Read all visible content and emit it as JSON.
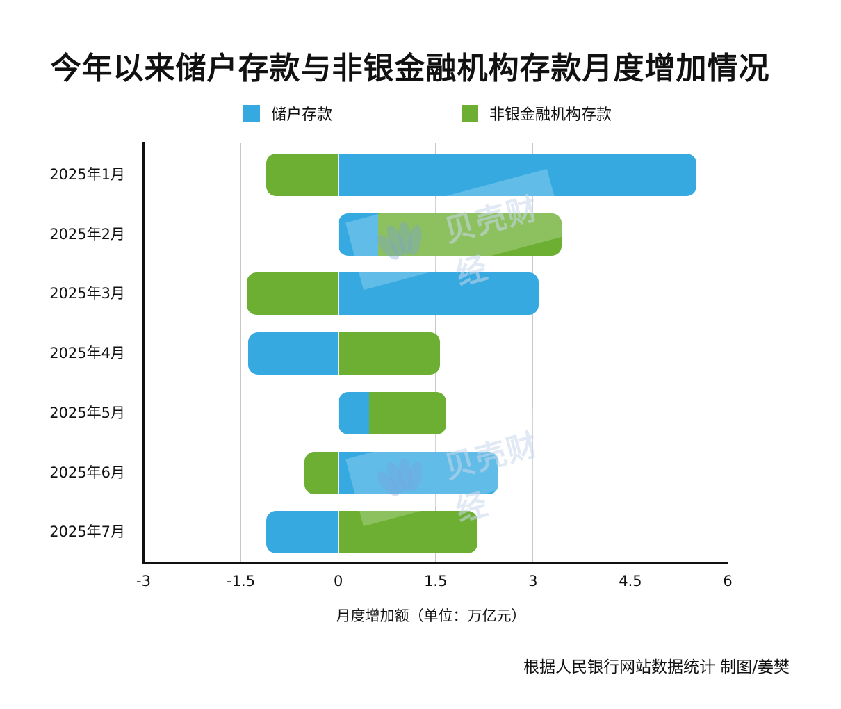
{
  "title": "今年以来储户存款与非银金融机构存款月度增加情况",
  "legend": [
    {
      "label": "储户存款",
      "color": "#35A9E0"
    },
    {
      "label": "非银金融机构存款",
      "color": "#6DAF33"
    }
  ],
  "xaxis": {
    "label": "月度增加额（单位：万亿元）",
    "ticks": [
      "-3",
      "-1.5",
      "0",
      "1.5",
      "3",
      "4.5",
      "6"
    ]
  },
  "categories": [
    "2025年1月",
    "2025年2月",
    "2025年3月",
    "2025年4月",
    "2025年5月",
    "2025年6月",
    "2025年7月"
  ],
  "source": "根据人民银行网站数据统计 制图/姜樊",
  "watermark": "贝壳财经",
  "colors": {
    "household": "#35A9E0",
    "nonbank": "#6DAF33",
    "axis": "#111111",
    "grid": "#C8C8C8"
  },
  "chart_data": {
    "type": "bar",
    "orientation": "horizontal",
    "stacked": true,
    "title": "今年以来储户存款与非银金融机构存款月度增加情况",
    "xlabel": "月度增加额（单位：万亿元）",
    "ylabel": "",
    "xlim": [
      -3,
      6
    ],
    "xticks": [
      -3,
      -1.5,
      0,
      1.5,
      3,
      4.5,
      6
    ],
    "grid": "vertical",
    "legend_position": "top",
    "categories": [
      "2025年1月",
      "2025年2月",
      "2025年3月",
      "2025年4月",
      "2025年5月",
      "2025年6月",
      "2025年7月"
    ],
    "series": [
      {
        "name": "储户存款",
        "color": "#35A9E0",
        "values": [
          5.52,
          0.61,
          3.09,
          -1.39,
          0.47,
          2.47,
          -1.11
        ]
      },
      {
        "name": "非银金融机构存款",
        "color": "#6DAF33",
        "values": [
          -1.11,
          2.83,
          -1.41,
          1.57,
          1.19,
          -0.52,
          2.14
        ]
      }
    ],
    "annotations": [
      "根据人民银行网站数据统计 制图/姜樊"
    ]
  }
}
